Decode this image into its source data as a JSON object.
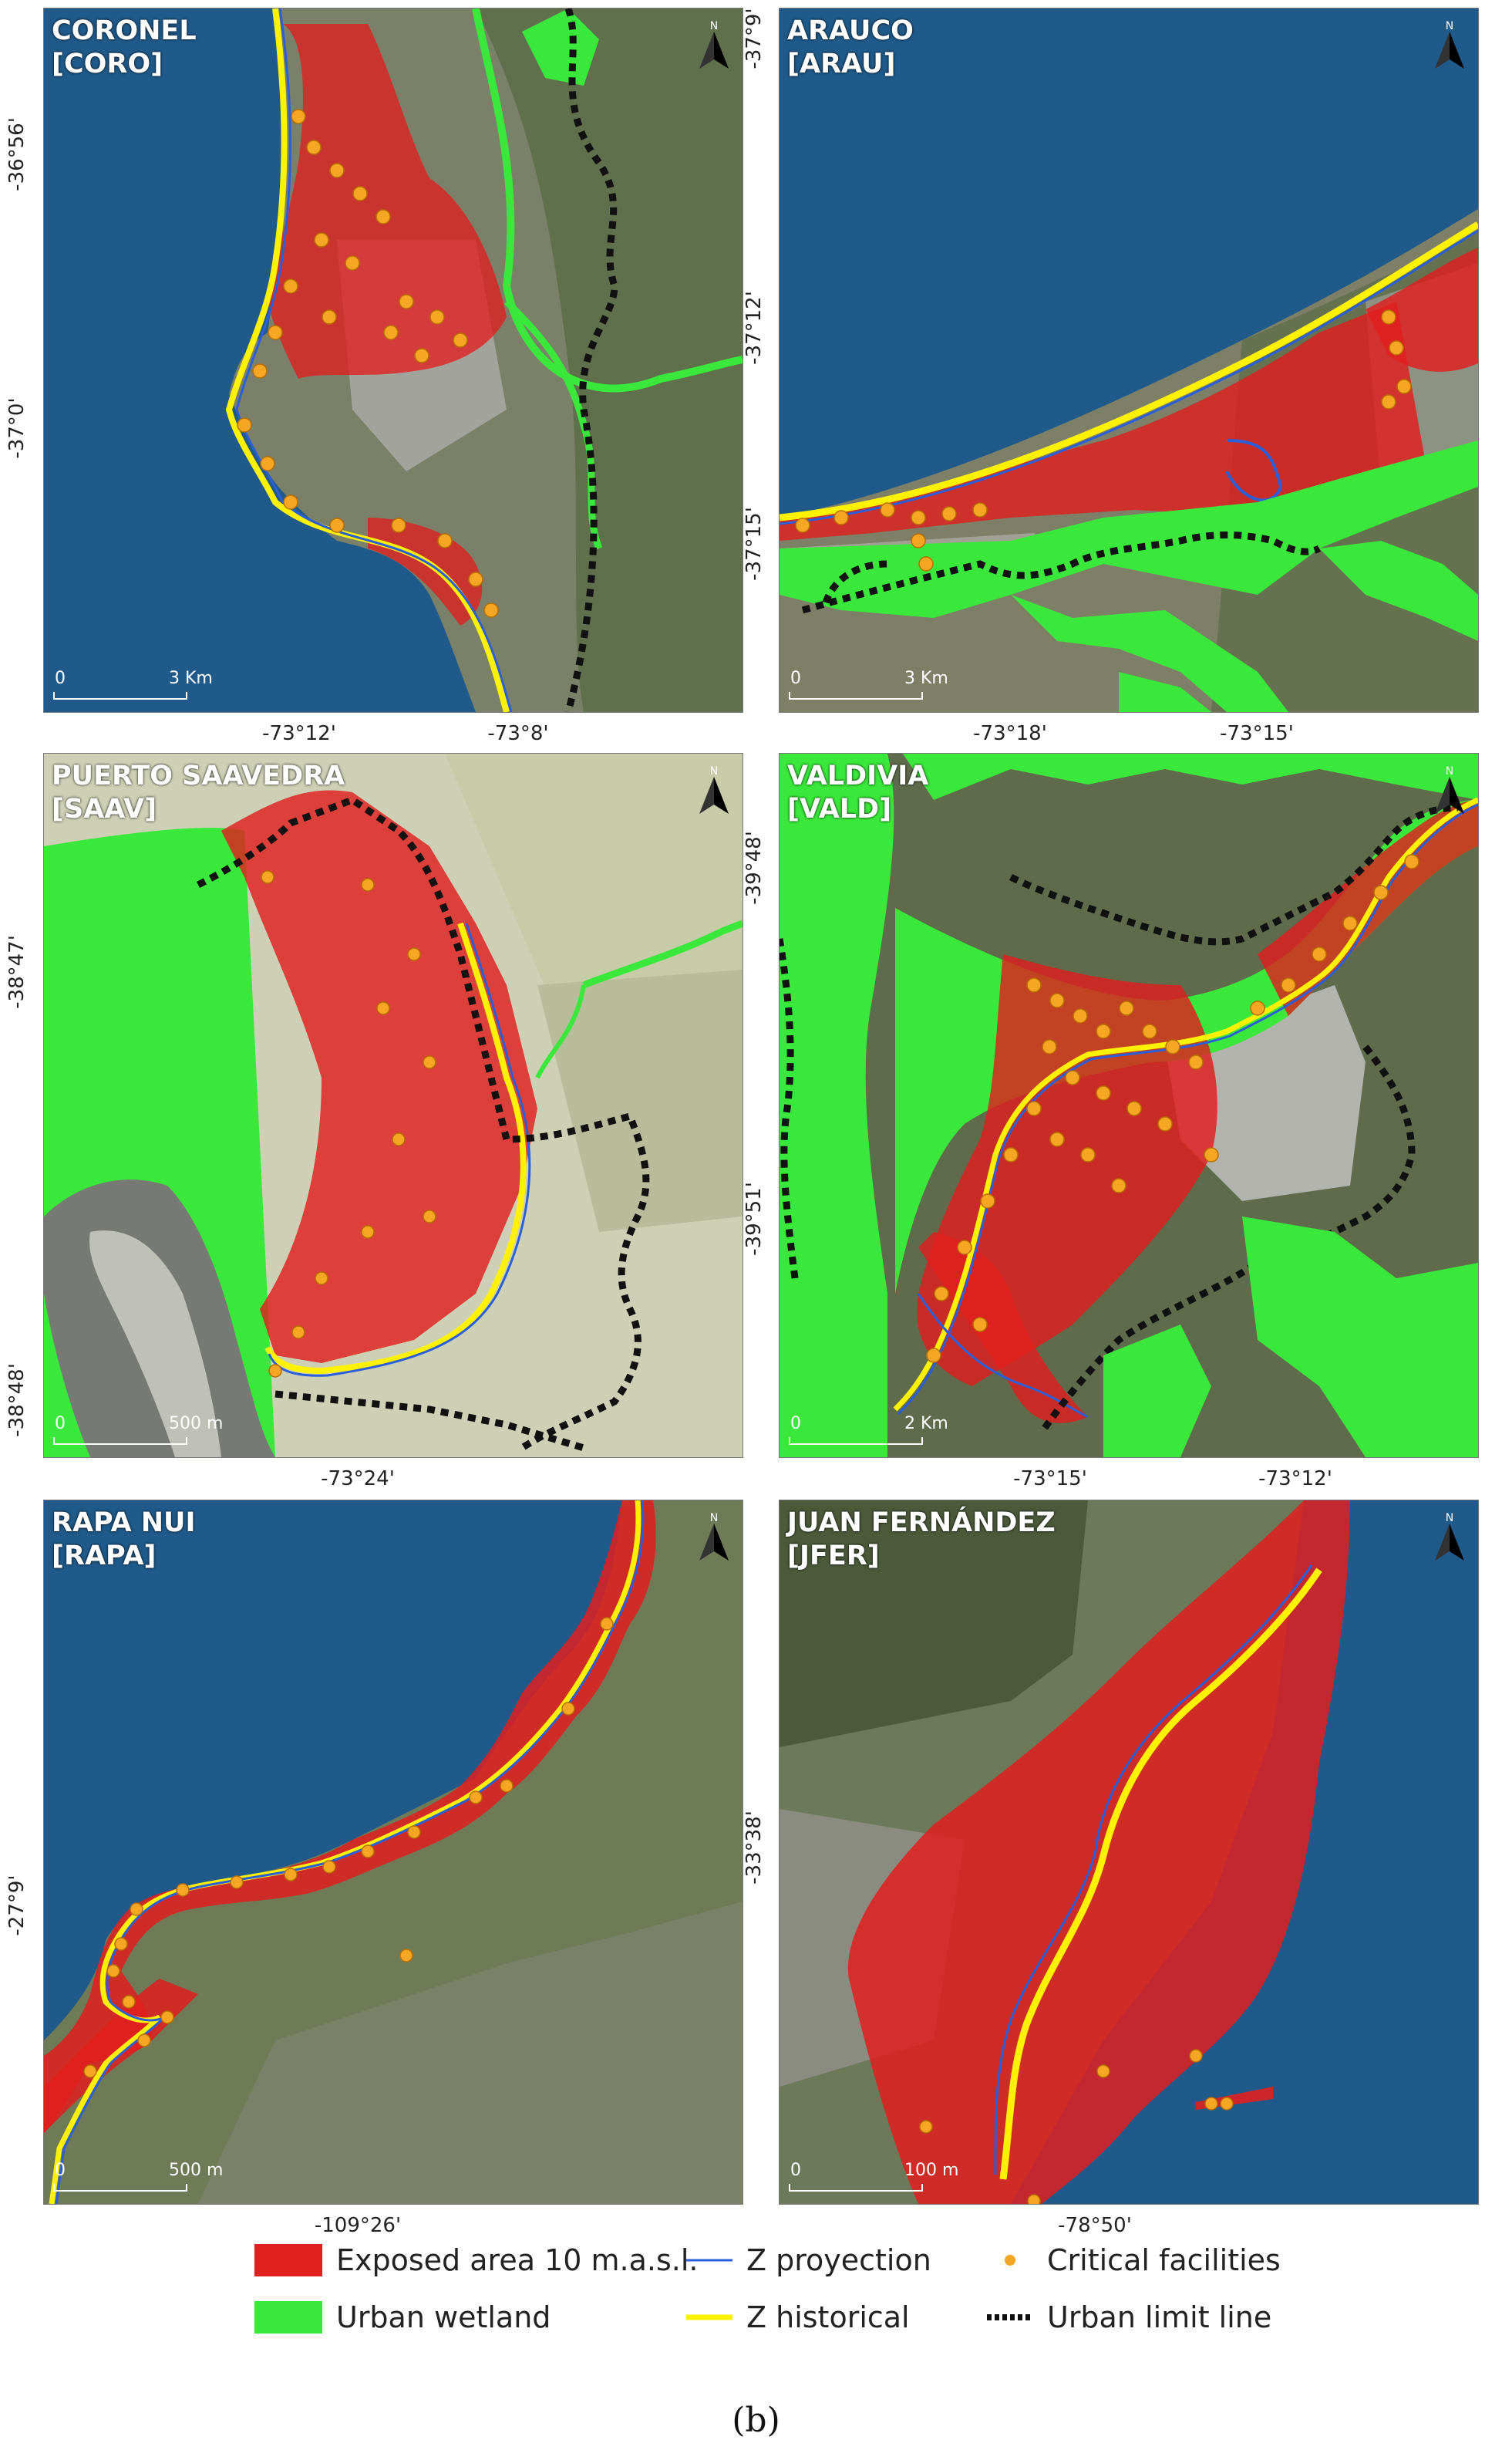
{
  "colors": {
    "ocean": "#1f5a8a",
    "exposed": "#e01f1f",
    "wetland": "#39e83b",
    "projection": "#2b5fd9",
    "historical": "#fff200",
    "facilities": "#f5a623",
    "urban_limit": "#111111"
  },
  "panels": [
    {
      "id": "coro",
      "title_line1": "CORONEL",
      "title_line2": "[CORO]",
      "scale_zero": "0",
      "scale_dist": "3 Km",
      "x_ticks": [
        "-73°12'",
        "-73°8'"
      ],
      "y_ticks": [
        "-36°56'",
        "-37°0'"
      ]
    },
    {
      "id": "arau",
      "title_line1": "ARAUCO",
      "title_line2": "[ARAU]",
      "scale_zero": "0",
      "scale_dist": "3 Km",
      "x_ticks": [
        "-73°18'",
        "-73°15'"
      ],
      "y_ticks": [
        "-37°9'",
        "-37°12'",
        "-37°15'"
      ]
    },
    {
      "id": "saav",
      "title_line1": "PUERTO SAAVEDRA",
      "title_line2": "[SAAV]",
      "scale_zero": "0",
      "scale_dist": "500 m",
      "x_ticks": [
        "-73°24'"
      ],
      "y_ticks": [
        "-38°47'",
        "-38°48'"
      ]
    },
    {
      "id": "vald",
      "title_line1": "VALDIVIA",
      "title_line2": "[VALD]",
      "scale_zero": "0",
      "scale_dist": "2 Km",
      "x_ticks": [
        "-73°15'",
        "-73°12'"
      ],
      "y_ticks": [
        "-39°48'",
        "-39°51'"
      ]
    },
    {
      "id": "rapa",
      "title_line1": "RAPA NUI",
      "title_line2": "[RAPA]",
      "scale_zero": "0",
      "scale_dist": "500 m",
      "x_ticks": [
        "-109°26'"
      ],
      "y_ticks": [
        "-27°9'"
      ]
    },
    {
      "id": "jfer",
      "title_line1": "JUAN FERNÁNDEZ",
      "title_line2": "[JFER]",
      "scale_zero": "0",
      "scale_dist": "100 m",
      "x_ticks": [
        "-78°50'"
      ],
      "y_ticks": [
        "-33°38'"
      ]
    }
  ],
  "north_label": "N",
  "legend": {
    "exposed": "Exposed area 10 m.a.s.l.",
    "wetland": "Urban wetland",
    "projection": "Z proyection",
    "historical": "Z historical",
    "facilities": "Critical facilities",
    "urban_limit": "Urban limit line"
  },
  "caption": "(b)"
}
